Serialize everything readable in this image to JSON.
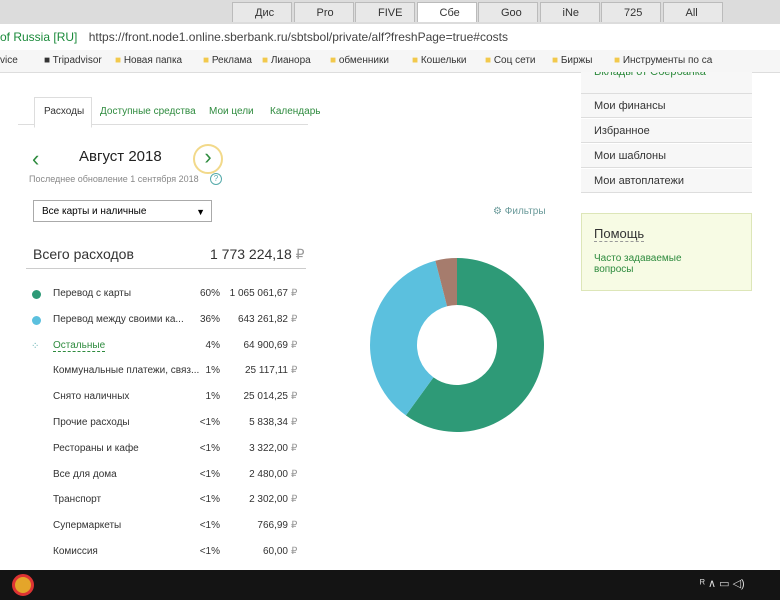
{
  "browser": {
    "tabs": [
      "Дис",
      "Pro",
      "FIVE",
      "Сбе",
      "Goo",
      "iNe",
      "725",
      "All"
    ],
    "site_identity": "of Russia [RU]",
    "url": "https://front.node1.online.sberbank.ru/sbtsbol/private/alf?freshPage=true#costs",
    "bookmarks": [
      "vice",
      "Tripadvisor",
      "Новая папка",
      "Реклама",
      "Лианора",
      "обменники",
      "Кошельки",
      "Соц сети",
      "Биржы",
      "Инструменты по са"
    ]
  },
  "page": {
    "tabs": [
      "Расходы",
      "Доступные средства",
      "Мои цели",
      "Календарь"
    ],
    "month": "Август 2018",
    "updated": "Последнее обновление 1 сентября 2018",
    "help_icon": "?",
    "filter_select": "Все карты и наличные",
    "filters": "Фильтры",
    "total_label": "Всего расходов",
    "total_amount": "1 773 224,18",
    "currency": "₽",
    "items": [
      {
        "name": "Перевод с карты",
        "percent": "60%",
        "amount": "1 065 061,67"
      },
      {
        "name": "Перевод между своими ка...",
        "percent": "36%",
        "amount": "643 261,82"
      },
      {
        "name": "Остальные",
        "percent": "4%",
        "amount": "64 900,69"
      },
      {
        "name": "Коммунальные платежи, связ...",
        "percent": "1%",
        "amount": "25 117,11"
      },
      {
        "name": "Снято наличных",
        "percent": "1%",
        "amount": "25 014,25"
      },
      {
        "name": "Прочие расходы",
        "percent": "<1%",
        "amount": "5 838,34"
      },
      {
        "name": "Рестораны и кафе",
        "percent": "<1%",
        "amount": "3 322,00"
      },
      {
        "name": "Все для дома",
        "percent": "<1%",
        "amount": "2 480,00"
      },
      {
        "name": "Транспорт",
        "percent": "<1%",
        "amount": "2 302,00"
      },
      {
        "name": "Супермаркеты",
        "percent": "<1%",
        "amount": "766,99"
      },
      {
        "name": "Комиссия",
        "percent": "<1%",
        "amount": "60,00"
      }
    ],
    "donut": {
      "values": [
        60,
        36,
        4
      ],
      "colors": [
        "#2e9a77",
        "#5bc0de",
        "#a67c6d"
      ]
    },
    "sidebar": {
      "cut_item": "Вклады от Сбербанка",
      "menu": [
        "Мои финансы",
        "Избранное",
        "Мои шаблоны",
        "Мои автоплатежи"
      ],
      "help_title": "Помощь",
      "help_link": "Часто задаваемые вопросы"
    }
  }
}
